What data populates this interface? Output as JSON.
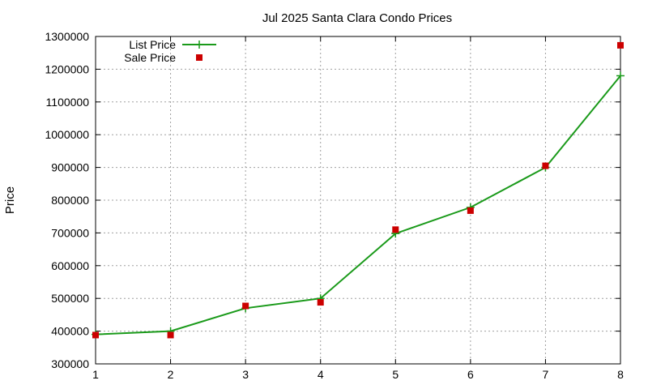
{
  "chart_data": {
    "type": "line",
    "title": "Jul 2025 Santa Clara Condo Prices",
    "xlabel": "",
    "ylabel": "Price",
    "xlim": [
      1,
      8
    ],
    "ylim": [
      300000,
      1300000
    ],
    "xticks": [
      "1",
      "2",
      "3",
      "4",
      "5",
      "6",
      "7",
      "8"
    ],
    "yticks": [
      "300000",
      "400000",
      "500000",
      "600000",
      "700000",
      "800000",
      "900000",
      "1000000",
      "1100000",
      "1200000",
      "1300000"
    ],
    "grid": true,
    "legend_position": "top-left",
    "series": [
      {
        "name": "List Price",
        "style": "line-with-plus-markers",
        "color": "#1a9a1a",
        "x": [
          1,
          2,
          3,
          4,
          5,
          6,
          7,
          8
        ],
        "y": [
          390000,
          400000,
          470000,
          500000,
          698000,
          778000,
          900000,
          1180000
        ]
      },
      {
        "name": "Sale Price",
        "style": "square-markers",
        "color": "#cc0000",
        "x": [
          1,
          2,
          3,
          4,
          5,
          6,
          7,
          8
        ],
        "y": [
          388000,
          388000,
          477000,
          488000,
          710000,
          768000,
          905000,
          1273000
        ]
      }
    ]
  }
}
